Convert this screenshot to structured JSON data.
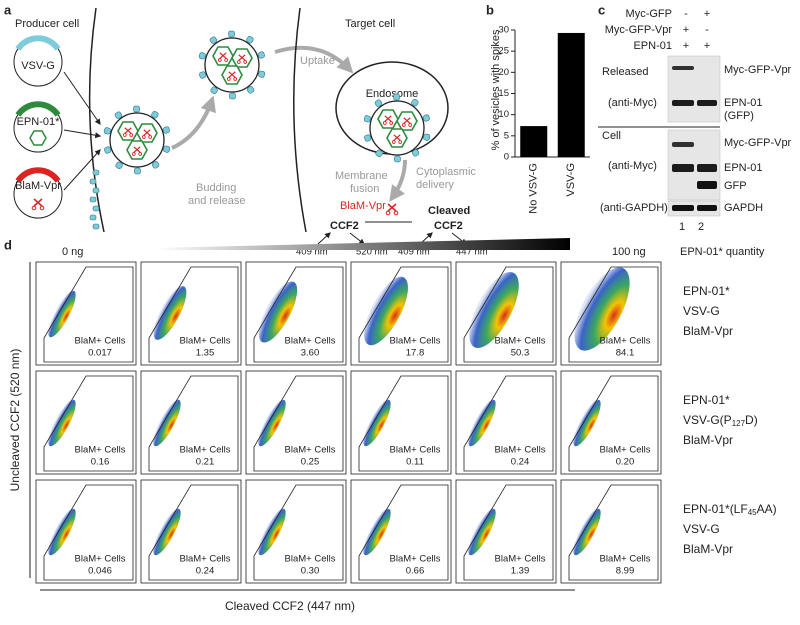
{
  "panel_a": {
    "label": "a",
    "producer": "Producer cell",
    "target": "Target cell",
    "plasmids": [
      "VSV-G",
      "EPN-01*",
      "BlaM-Vpr"
    ],
    "budding": [
      "Budding",
      "and release"
    ],
    "uptake": "Uptake",
    "endosome": "Endosome",
    "fusion": [
      "Membrane",
      "fusion"
    ],
    "delivery": [
      "Cytoplasmic",
      "delivery"
    ],
    "enzyme": "BlaM-Vpr",
    "substrate": "CCF2",
    "product": [
      "Cleaved",
      "CCF2"
    ],
    "wavelengths": [
      "409 nm",
      "520 nm",
      "409 nm",
      "447 nm"
    ]
  },
  "panel_b": {
    "label": "b",
    "y_label": "% of vesicles with spikes",
    "categories": [
      "No VSV-G",
      "VSV-G"
    ],
    "values": [
      7.3,
      29.3
    ],
    "ylim": [
      0,
      30
    ],
    "yticks": [
      0,
      5,
      10,
      15,
      20,
      25,
      30
    ],
    "color": "#000000"
  },
  "panel_c": {
    "label": "c",
    "conditions": [
      {
        "name": "Myc-GFP",
        "signs": [
          "-",
          "+"
        ]
      },
      {
        "name": "Myc-GFP-Vpr",
        "signs": [
          "+",
          "-"
        ]
      },
      {
        "name": "EPN-01",
        "signs": [
          "+",
          "+"
        ]
      }
    ],
    "released": "Released",
    "released_antibody": "(anti-Myc)",
    "released_bands": [
      "Myc-GFP-Vpr",
      "EPN-01",
      "(GFP)"
    ],
    "cell": "Cell",
    "cell_antibody": "(anti-Myc)",
    "cell_bands": [
      "Myc-GFP-Vpr",
      "EPN-01",
      "GFP"
    ],
    "loading_antibody": "(anti-GAPDH)",
    "loading_band": "GAPDH",
    "lanes": [
      "1",
      "2"
    ]
  },
  "panel_d": {
    "label": "d",
    "low": "0 ng",
    "high": "100 ng",
    "quantity": "EPN-01* quantity",
    "y_label": "Uncleaved CCF2 (520 nm)",
    "x_label": "Cleaved CCF2 (447 nm)",
    "gate_label": "BlaM+ Cells",
    "rows": [
      {
        "label": [
          [
            "EPN-01*"
          ],
          [
            "VSV-G"
          ],
          [
            "BlaM-Vpr"
          ]
        ],
        "values": [
          "0.017",
          "1.35",
          "3.60",
          "17.8",
          "50.3",
          "84.1"
        ]
      },
      {
        "label": [
          [
            "EPN-01*"
          ],
          [
            "VSV-G(P",
            "127",
            "D)"
          ],
          [
            "BlaM-Vpr"
          ]
        ],
        "values": [
          "0.16",
          "0.21",
          "0.25",
          "0.11",
          "0.24",
          "0.20"
        ]
      },
      {
        "label": [
          [
            "EPN-01*(LF",
            "45",
            "AA)"
          ],
          [
            "VSV-G"
          ],
          [
            "BlaM-Vpr"
          ]
        ],
        "values": [
          "0.046",
          "0.24",
          "0.30",
          "0.66",
          "1.39",
          "8.99"
        ]
      }
    ]
  }
}
